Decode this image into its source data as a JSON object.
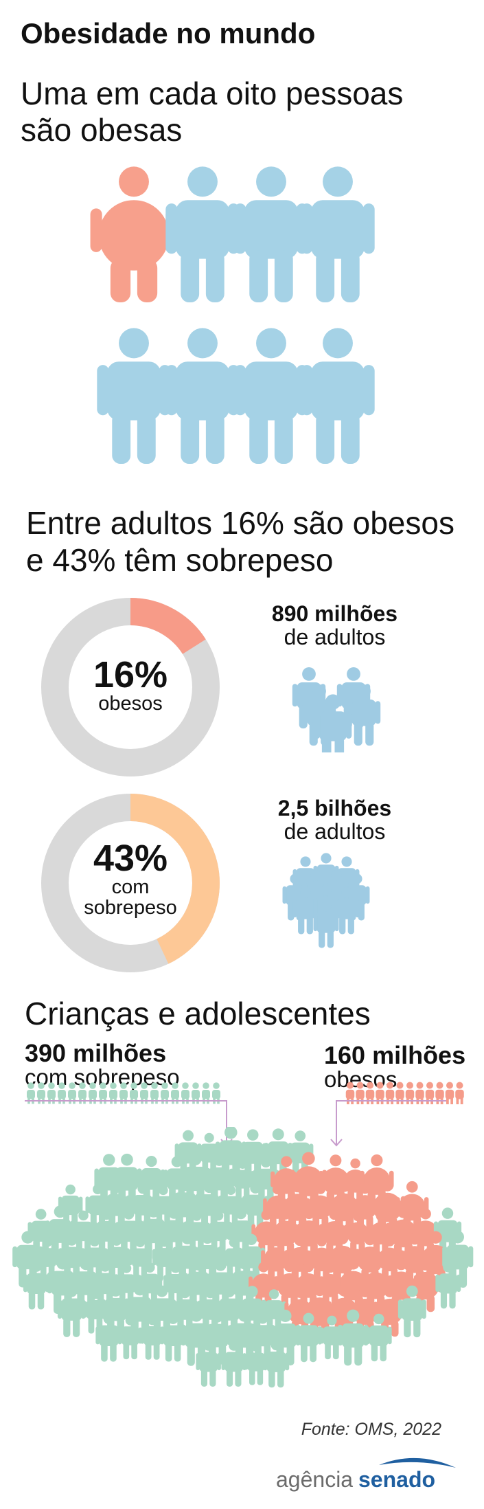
{
  "title": "Obesidade no mundo",
  "subtitle": {
    "line1": "Uma em cada oito pessoas",
    "line2": "são obesas"
  },
  "adults": {
    "heading_line1": "Entre adultos 16% são obesos",
    "heading_line2": "e 43% têm sobrepeso",
    "obese": {
      "value": "16%",
      "label": "obesos",
      "fraction": 0.16,
      "count_bold": "890 milhões",
      "count_light": "de adultos",
      "color": "#f79b88"
    },
    "overweight": {
      "value": "43%",
      "label_line1": "com",
      "label_line2": "sobrepeso",
      "fraction": 0.43,
      "count_bold": "2,5 bilhões",
      "count_light": "de adultos",
      "color": "#fdc896"
    },
    "ring_track_color": "#d9d9d9",
    "people_color": "#9fcbe3"
  },
  "kids": {
    "heading": "Crianças e adolescentes",
    "overweight_bold": "390 milhões",
    "overweight_light": "com sobrepeso",
    "obese_bold": "160 milhões",
    "obese_light": "obesos",
    "overweight_color": "#a8d8c4",
    "obese_color": "#f59c8a",
    "arrow_color": "#c79bcc"
  },
  "ratio": {
    "highlighted": 1,
    "total": 8,
    "highlight_color": "#f7a08c",
    "person_color": "#a5d2e6"
  },
  "source": "Fonte: OMS, 2022",
  "logo": {
    "part1": "agência",
    "part2": "senado",
    "color_part1": "#6b6b6b",
    "color_part2": "#1f5fa0"
  }
}
